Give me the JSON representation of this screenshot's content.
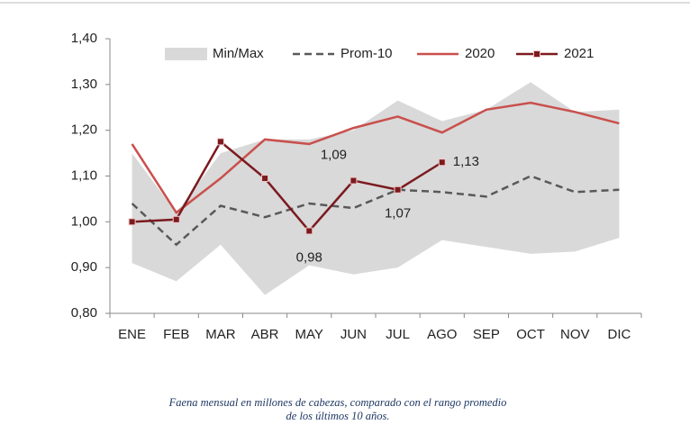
{
  "chart_data": {
    "type": "line",
    "categories": [
      "ENE",
      "FEB",
      "MAR",
      "ABR",
      "MAY",
      "JUN",
      "JUL",
      "AGO",
      "SEP",
      "OCT",
      "NOV",
      "DIC"
    ],
    "band": {
      "name": "Min/Max",
      "color": "#d9d9d9",
      "upper": [
        1.15,
        1.02,
        1.15,
        1.18,
        1.18,
        1.2,
        1.265,
        1.22,
        1.245,
        1.305,
        1.24,
        1.245
      ],
      "lower": [
        0.91,
        0.87,
        0.95,
        0.84,
        0.905,
        0.885,
        0.9,
        0.96,
        0.945,
        0.93,
        0.935,
        0.965
      ]
    },
    "series": [
      {
        "name": "Prom-10",
        "color": "#595959",
        "dashed": true,
        "values": [
          1.04,
          0.95,
          1.035,
          1.01,
          1.04,
          1.03,
          1.07,
          1.065,
          1.055,
          1.1,
          1.065,
          1.07
        ]
      },
      {
        "name": "2020",
        "color": "#c9504d",
        "values": [
          1.17,
          1.02,
          1.095,
          1.18,
          1.17,
          1.205,
          1.23,
          1.195,
          1.245,
          1.26,
          1.24,
          1.215
        ]
      },
      {
        "name": "2021",
        "color": "#7b1a1f",
        "markers": true,
        "values": [
          1.0,
          1.005,
          1.175,
          1.095,
          0.98,
          1.09,
          1.07,
          1.13,
          null,
          null,
          null,
          null
        ],
        "value_labels": [
          null,
          null,
          null,
          null,
          "0,98",
          "1,09",
          "1,07",
          "1,13",
          null,
          null,
          null,
          null
        ]
      }
    ],
    "ylim": [
      0.8,
      1.4
    ],
    "yticks": [
      {
        "value": 0.8,
        "label": "0,80"
      },
      {
        "value": 0.9,
        "label": "0,90"
      },
      {
        "value": 1.0,
        "label": "1,00"
      },
      {
        "value": 1.1,
        "label": "1,10"
      },
      {
        "value": 1.2,
        "label": "1,20"
      },
      {
        "value": 1.3,
        "label": "1,30"
      },
      {
        "value": 1.4,
        "label": "1,40"
      }
    ],
    "legend": "top",
    "caption": [
      "Faena mensual en millones de cabezas, comparado con el rango promedio",
      "de los últimos 10 años."
    ]
  }
}
